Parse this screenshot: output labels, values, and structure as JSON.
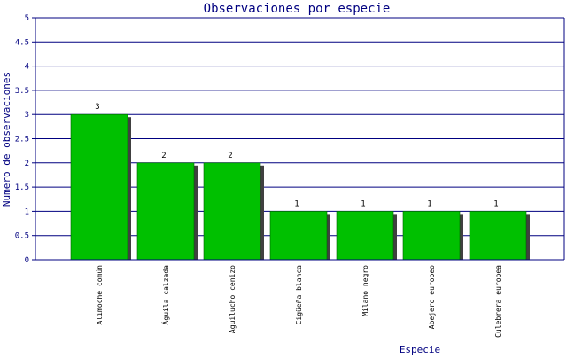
{
  "chart_data": {
    "type": "bar",
    "title": "Observaciones por especie",
    "xlabel": "Especie",
    "ylabel": "Numero de observaciones",
    "categories": [
      "Alimoche común",
      "Águila calzada",
      "Aguilucho cenizo",
      "Cigüeña blanca",
      "Milano negro",
      "Abejero europeo",
      "Culebrera europea"
    ],
    "values": [
      3,
      2,
      2,
      1,
      1,
      1,
      1
    ],
    "data_labels": [
      "3",
      "2",
      "2",
      "1",
      "1",
      "1",
      "1"
    ],
    "ylim": [
      0,
      5
    ],
    "yticks": [
      "0",
      "0.5",
      "1",
      "1.5",
      "2",
      "2.5",
      "3",
      "3.5",
      "4",
      "4.5",
      "5"
    ],
    "grid": true,
    "colors": {
      "bar": "#00c000",
      "bar_edge": "#006000",
      "shadow": "#404040",
      "text": "#000080",
      "grid": "#000080",
      "axis": "#000080"
    }
  }
}
